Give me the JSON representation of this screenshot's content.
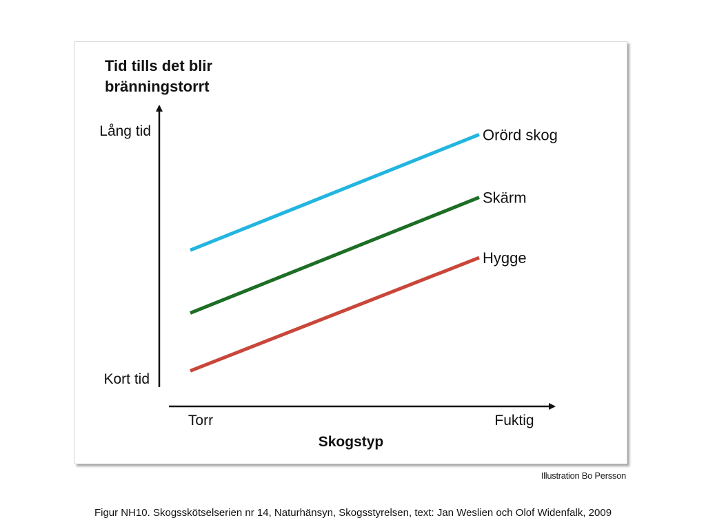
{
  "chart_data": {
    "type": "line",
    "title_lines": [
      "Tid tills det blir",
      "bränningstorrt"
    ],
    "ylabel_top": "Lång tid",
    "ylabel_bottom": "Kort tid",
    "xlabel_left": "Torr",
    "xlabel_right": "Fuktig",
    "xlabel": "Skogstyp",
    "x": [
      0,
      1
    ],
    "ylim": [
      0,
      1
    ],
    "series": [
      {
        "name": "Orörd skog",
        "values": [
          0.52,
          0.98
        ],
        "color": "#22b5e0"
      },
      {
        "name": "Skärm",
        "values": [
          0.27,
          0.73
        ],
        "color": "#1c6e25"
      },
      {
        "name": "Hygge",
        "values": [
          0.04,
          0.49
        ],
        "color": "#c8473a"
      }
    ]
  },
  "credit": "Illustration Bo Persson",
  "caption": "Figur  NH10. Skogsskötselserien nr 14, Naturhänsyn, Skogsstyrelsen, text: Jan Weslien och Olof Widenfalk, 2009"
}
